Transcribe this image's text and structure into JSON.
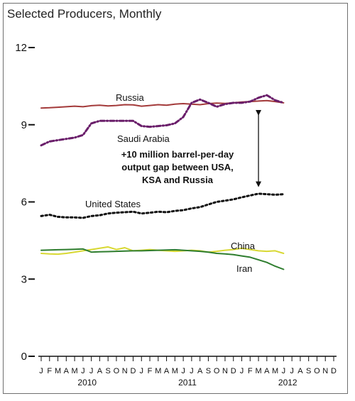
{
  "chart_data": {
    "type": "line",
    "title": "Selected Producers, Monthly",
    "ylim": [
      0,
      12
    ],
    "yticks": [
      "0",
      "3",
      "6",
      "9",
      "12"
    ],
    "ytick_values": [
      0,
      3,
      6,
      9,
      12
    ],
    "month_labels": [
      "J",
      "F",
      "M",
      "A",
      "M",
      "J",
      "J",
      "A",
      "S",
      "O",
      "N",
      "D",
      "J",
      "F",
      "M",
      "A",
      "M",
      "J",
      "J",
      "A",
      "S",
      "O",
      "N",
      "D",
      "J",
      "F",
      "M",
      "A",
      "M",
      "J",
      "J",
      "A",
      "S",
      "O",
      "N",
      "D"
    ],
    "year_labels": [
      "2010",
      "2011",
      "2012"
    ],
    "series": [
      {
        "name": "Russia",
        "color": "#a33a3a",
        "style": "solid",
        "values": [
          9.65,
          9.66,
          9.68,
          9.7,
          9.72,
          9.7,
          9.74,
          9.76,
          9.73,
          9.75,
          9.78,
          9.77,
          9.72,
          9.75,
          9.78,
          9.76,
          9.8,
          9.82,
          9.8,
          9.78,
          9.82,
          9.84,
          9.83,
          9.85,
          9.88,
          9.9,
          9.92,
          9.94,
          9.9,
          9.85
        ]
      },
      {
        "name": "Saudi Arabia",
        "color": "#6a1e6a",
        "style": "dashdot",
        "values": [
          8.2,
          8.35,
          8.4,
          8.45,
          8.5,
          8.6,
          9.05,
          9.15,
          9.15,
          9.15,
          9.15,
          9.15,
          8.95,
          8.92,
          8.95,
          8.98,
          9.05,
          9.3,
          9.85,
          9.98,
          9.85,
          9.7,
          9.8,
          9.85,
          9.85,
          9.9,
          10.05,
          10.15,
          9.95,
          9.85
        ]
      },
      {
        "name": "United States",
        "color": "#111111",
        "style": "dotted",
        "values": [
          5.45,
          5.5,
          5.42,
          5.4,
          5.4,
          5.38,
          5.45,
          5.48,
          5.55,
          5.58,
          5.6,
          5.62,
          5.55,
          5.58,
          5.62,
          5.6,
          5.65,
          5.68,
          5.75,
          5.8,
          5.9,
          6.0,
          6.05,
          6.1,
          6.18,
          6.25,
          6.32,
          6.3,
          6.28,
          6.3
        ]
      },
      {
        "name": "China",
        "color": "#d8d832",
        "style": "solid",
        "values": [
          4.0,
          3.98,
          3.97,
          4.0,
          4.05,
          4.1,
          4.15,
          4.2,
          4.25,
          4.15,
          4.22,
          4.1,
          4.12,
          4.15,
          4.12,
          4.1,
          4.08,
          4.1,
          4.12,
          4.1,
          4.05,
          4.08,
          4.12,
          4.15,
          4.2,
          4.15,
          4.1,
          4.08,
          4.1,
          4.0
        ]
      },
      {
        "name": "Iran",
        "color": "#2e7d2e",
        "style": "solid",
        "values": [
          4.12,
          4.13,
          4.14,
          4.15,
          4.16,
          4.17,
          4.05,
          4.06,
          4.07,
          4.08,
          4.09,
          4.1,
          4.1,
          4.11,
          4.12,
          4.13,
          4.14,
          4.12,
          4.1,
          4.08,
          4.05,
          4.0,
          3.98,
          3.95,
          3.9,
          3.85,
          3.75,
          3.65,
          3.5,
          3.38
        ]
      }
    ],
    "annotations": {
      "gap_text": [
        "+10 million barrel-per-day",
        "output gap between USA,",
        "KSA and Russia"
      ],
      "gap_arrow_x_index": 26,
      "gap_arrow_from": 6.3,
      "gap_arrow_to": 9.85
    }
  }
}
